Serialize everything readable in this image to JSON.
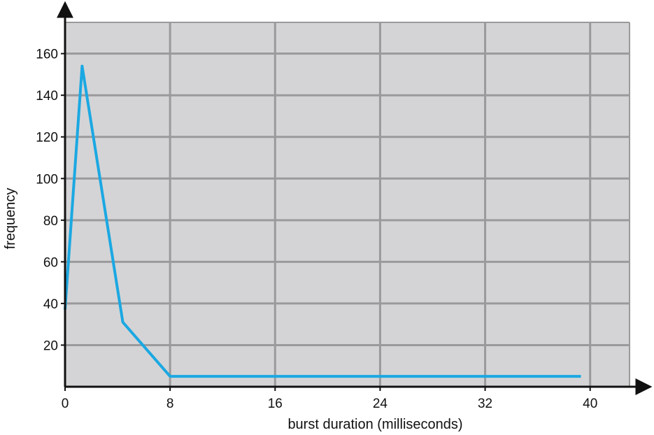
{
  "chart_data": {
    "type": "line",
    "title": "",
    "xlabel": "burst duration (milliseconds)",
    "ylabel": "frequency",
    "xlim": [
      0,
      43
    ],
    "ylim": [
      0,
      175
    ],
    "x_ticks": [
      0,
      8,
      16,
      24,
      32,
      40
    ],
    "y_ticks": [
      20,
      40,
      60,
      80,
      100,
      120,
      140,
      160
    ],
    "grid": true,
    "legend": "none",
    "series": [
      {
        "x": [
          0,
          1.3,
          4.4,
          8,
          39.3
        ],
        "y": [
          37,
          154,
          31,
          5,
          5
        ]
      }
    ],
    "colors": {
      "plot_background": "#d4d4d6",
      "grid": "#9a9a9c",
      "line": "#1ba8e2",
      "axis": "#111111"
    }
  }
}
